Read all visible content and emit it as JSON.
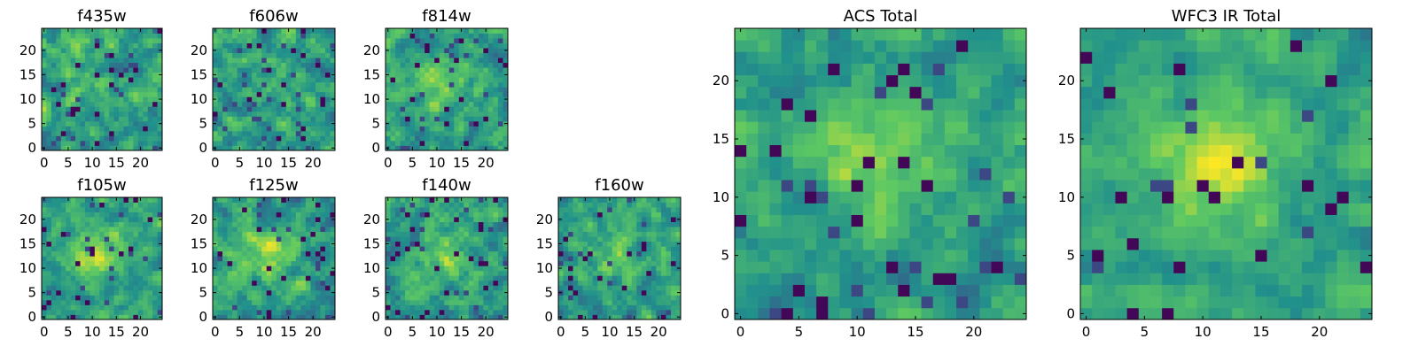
{
  "figure": {
    "title": ""
  },
  "colormap": [
    "#440154",
    "#3b528b",
    "#21918c",
    "#5ec962",
    "#fde725"
  ],
  "chart_data": [
    {
      "type": "heatmap",
      "title": "f435w",
      "size": 25,
      "xticks": [
        0,
        5,
        10,
        15,
        20
      ],
      "yticks": [
        0,
        5,
        10,
        15,
        20
      ],
      "xlim": [
        -0.5,
        24.5
      ],
      "ylim": [
        -0.5,
        24.5
      ],
      "grid": false,
      "signal": 0.1,
      "noise": 0.55,
      "seed": 11
    },
    {
      "type": "heatmap",
      "title": "f606w",
      "size": 25,
      "xticks": [
        0,
        5,
        10,
        15,
        20
      ],
      "yticks": [
        0,
        5,
        10,
        15,
        20
      ],
      "xlim": [
        -0.5,
        24.5
      ],
      "ylim": [
        -0.5,
        24.5
      ],
      "grid": false,
      "signal": 0.15,
      "noise": 0.55,
      "seed": 23
    },
    {
      "type": "heatmap",
      "title": "f814w",
      "size": 25,
      "xticks": [
        0,
        5,
        10,
        15,
        20
      ],
      "yticks": [
        0,
        5,
        10,
        15,
        20
      ],
      "xlim": [
        -0.5,
        24.5
      ],
      "ylim": [
        -0.5,
        24.5
      ],
      "grid": false,
      "signal": 0.35,
      "noise": 0.5,
      "seed": 37
    },
    {
      "type": "heatmap",
      "title": "f105w",
      "size": 25,
      "xticks": [
        0,
        5,
        10,
        15,
        20
      ],
      "yticks": [
        0,
        5,
        10,
        15,
        20
      ],
      "xlim": [
        -0.5,
        24.5
      ],
      "ylim": [
        -0.5,
        24.5
      ],
      "grid": false,
      "signal": 0.55,
      "noise": 0.45,
      "seed": 41
    },
    {
      "type": "heatmap",
      "title": "f125w",
      "size": 25,
      "xticks": [
        0,
        5,
        10,
        15,
        20
      ],
      "yticks": [
        0,
        5,
        10,
        15,
        20
      ],
      "xlim": [
        -0.5,
        24.5
      ],
      "ylim": [
        -0.5,
        24.5
      ],
      "grid": false,
      "signal": 0.45,
      "noise": 0.5,
      "seed": 53
    },
    {
      "type": "heatmap",
      "title": "f140w",
      "size": 25,
      "xticks": [
        0,
        5,
        10,
        15,
        20
      ],
      "yticks": [
        0,
        5,
        10,
        15,
        20
      ],
      "xlim": [
        -0.5,
        24.5
      ],
      "ylim": [
        -0.5,
        24.5
      ],
      "grid": false,
      "signal": 0.35,
      "noise": 0.5,
      "seed": 67
    },
    {
      "type": "heatmap",
      "title": "f160w",
      "size": 25,
      "xticks": [
        0,
        5,
        10,
        15,
        20
      ],
      "yticks": [
        0,
        5,
        10,
        15,
        20
      ],
      "xlim": [
        -0.5,
        24.5
      ],
      "ylim": [
        -0.5,
        24.5
      ],
      "grid": false,
      "signal": 0.35,
      "noise": 0.5,
      "seed": 79
    },
    {
      "type": "heatmap",
      "title": "ACS Total",
      "size": 25,
      "xticks": [
        0,
        5,
        10,
        15,
        20
      ],
      "yticks": [
        0,
        5,
        10,
        15,
        20
      ],
      "xlim": [
        -0.5,
        24.5
      ],
      "ylim": [
        -0.5,
        24.5
      ],
      "grid": false,
      "signal": 0.45,
      "noise": 0.42,
      "seed": 91
    },
    {
      "type": "heatmap",
      "title": "WFC3 IR Total",
      "size": 25,
      "xticks": [
        0,
        5,
        10,
        15,
        20
      ],
      "yticks": [
        0,
        5,
        10,
        15,
        20
      ],
      "xlim": [
        -0.5,
        24.5
      ],
      "ylim": [
        -0.5,
        24.5
      ],
      "grid": false,
      "signal": 0.65,
      "noise": 0.35,
      "seed": 103
    }
  ]
}
